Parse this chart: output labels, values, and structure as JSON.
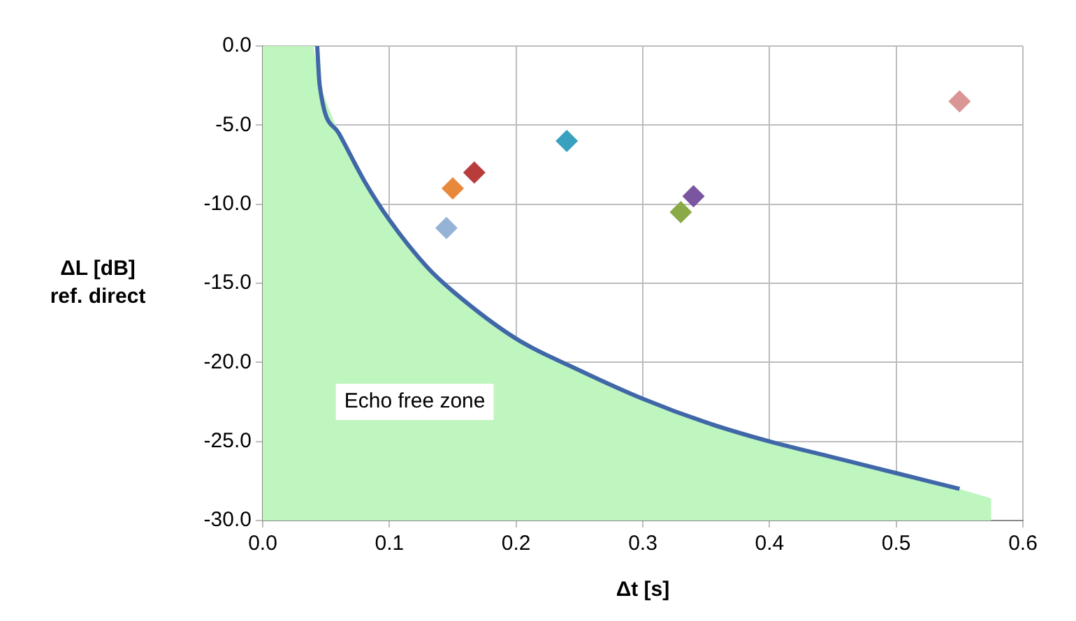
{
  "chart_data": {
    "type": "scatter",
    "xlabel": "Δt [s]",
    "ylabel": "ΔL [dB]\nref. direct",
    "xlim": [
      0,
      0.6
    ],
    "ylim": [
      -30,
      0
    ],
    "xticks": [
      {
        "value": 0,
        "label": "0.0"
      },
      {
        "value": 0.1,
        "label": "0.1"
      },
      {
        "value": 0.2,
        "label": "0.2"
      },
      {
        "value": 0.3,
        "label": "0.3"
      },
      {
        "value": 0.4,
        "label": "0.4"
      },
      {
        "value": 0.5,
        "label": "0.5"
      },
      {
        "value": 0.6,
        "label": "0.6"
      }
    ],
    "yticks": [
      {
        "value": 0,
        "label": "0.0"
      },
      {
        "value": -5,
        "label": "-5.0"
      },
      {
        "value": -10,
        "label": "-10.0"
      },
      {
        "value": -15,
        "label": "-15.0"
      },
      {
        "value": -20,
        "label": "-20.0"
      },
      {
        "value": -25,
        "label": "-25.0"
      },
      {
        "value": -30,
        "label": "-30.0"
      }
    ],
    "grid": true,
    "legend": false,
    "marker": "diamond",
    "series": [
      {
        "type": "area",
        "marker": "none",
        "color": "#bff5bf",
        "x": [
          0,
          0,
          0.04,
          0.045,
          0.06,
          0.08,
          0.1,
          0.13,
          0.15,
          0.2,
          0.25,
          0.3,
          0.35,
          0.4,
          0.45,
          0.5,
          0.55,
          0.575,
          0.575
        ],
        "values": [
          -30,
          0,
          0,
          -2.5,
          -5.5,
          -8.5,
          -11,
          -14,
          -15.5,
          -18.5,
          -20.5,
          -22.3,
          -23.8,
          -25,
          -26,
          -27,
          -28,
          -28.6,
          -30
        ]
      },
      {
        "type": "line",
        "marker": "none",
        "color": "#4068a8",
        "x": [
          0.043,
          0.045,
          0.06,
          0.08,
          0.1,
          0.13,
          0.15,
          0.2,
          0.25,
          0.3,
          0.35,
          0.4,
          0.45,
          0.5,
          0.55
        ],
        "values": [
          0,
          -2.5,
          -5.5,
          -8.5,
          -11,
          -14,
          -15.5,
          -18.5,
          -20.5,
          -22.3,
          -23.8,
          -25,
          -26,
          -27,
          -28
        ]
      },
      {
        "color": "#95b3d7",
        "x": [
          0.145
        ],
        "values": [
          -11.5
        ]
      },
      {
        "color": "#e8883a",
        "x": [
          0.15
        ],
        "values": [
          -9
        ]
      },
      {
        "color": "#b83c3c",
        "x": [
          0.167
        ],
        "values": [
          -8
        ]
      },
      {
        "color": "#3aa0bf",
        "x": [
          0.24
        ],
        "values": [
          -6
        ]
      },
      {
        "color": "#8aaa48",
        "x": [
          0.33
        ],
        "values": [
          -10.5
        ]
      },
      {
        "color": "#7a55a0",
        "x": [
          0.34
        ],
        "values": [
          -9.5
        ]
      },
      {
        "color": "#d99694",
        "x": [
          0.55
        ],
        "values": [
          -3.5
        ]
      }
    ],
    "annotations": [
      "Echo free zone"
    ]
  }
}
